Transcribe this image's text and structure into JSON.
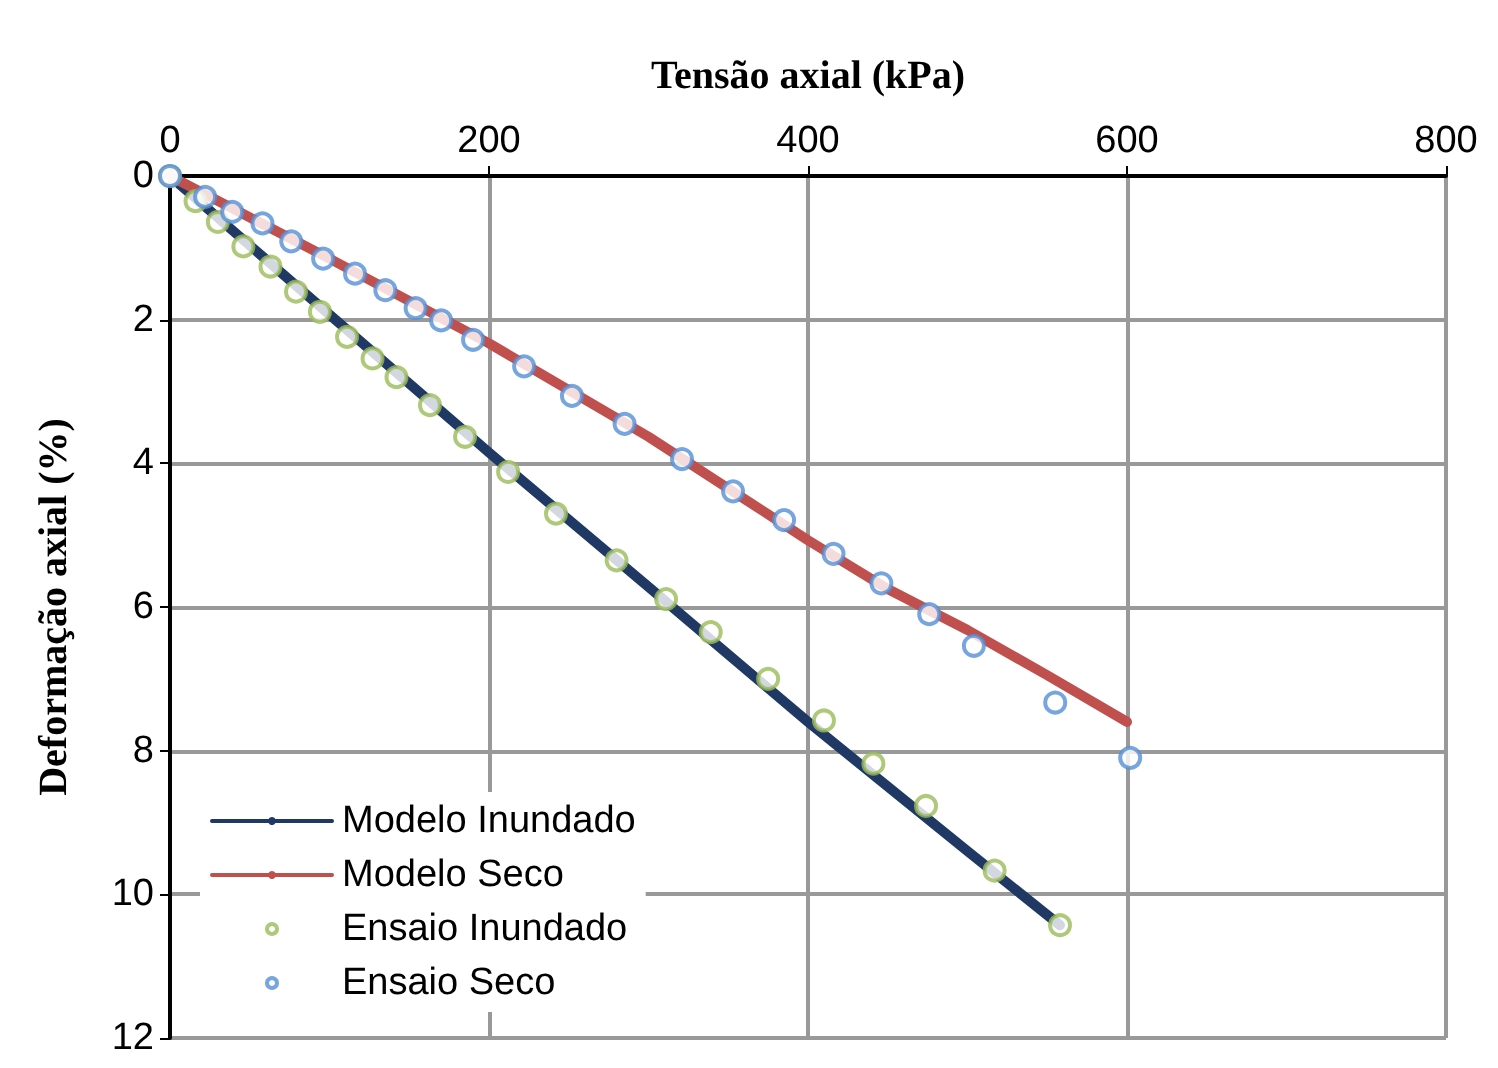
{
  "chart_data": {
    "type": "line",
    "xlabel": "Tensão axial (kPa)",
    "ylabel": "Deformação axial (%)",
    "xlim": [
      0,
      800
    ],
    "xticks": [
      0,
      200,
      400,
      600,
      800
    ],
    "ylim": [
      12,
      0
    ],
    "yticks": [
      0,
      2,
      4,
      6,
      8,
      10,
      12
    ],
    "grid": true,
    "legend": "bottom left",
    "series": [
      {
        "name": "Modelo Inundado",
        "type": "line",
        "color": "#1f3864",
        "marker": "none",
        "line_style": "solid",
        "x": [
          0,
          100,
          200,
          300,
          400,
          500,
          558
        ],
        "values": [
          0,
          1.93,
          3.85,
          5.72,
          7.6,
          9.4,
          10.43
        ]
      },
      {
        "name": "Modelo Seco",
        "type": "line",
        "color": "#c0504d",
        "marker": "none",
        "line_style": "solid",
        "x": [
          0,
          100,
          200,
          300,
          400,
          450,
          500,
          550,
          600
        ],
        "values": [
          0,
          1.15,
          2.33,
          3.63,
          5.07,
          5.75,
          6.32,
          6.95,
          7.6
        ]
      },
      {
        "name": "Ensaio Inundado",
        "type": "scatter",
        "color": "#9bbb59",
        "marker": "circle",
        "x": [
          0,
          16,
          30,
          46,
          63,
          79,
          94,
          111,
          127,
          142,
          163,
          185,
          212,
          242,
          280,
          311,
          339,
          375,
          410,
          441,
          474,
          517,
          558
        ],
        "values": [
          0,
          0.35,
          0.64,
          0.98,
          1.26,
          1.61,
          1.89,
          2.24,
          2.54,
          2.8,
          3.19,
          3.63,
          4.12,
          4.7,
          5.35,
          5.89,
          6.35,
          7.0,
          7.58,
          8.18,
          8.77,
          9.67,
          10.43
        ]
      },
      {
        "name": "Ensaio Seco",
        "type": "scatter",
        "color": "#558ed5",
        "marker": "circle",
        "x": [
          0,
          22,
          39,
          58,
          76,
          96,
          116,
          135,
          154,
          170,
          190,
          222,
          252,
          285,
          321,
          353,
          385,
          416,
          446,
          476,
          504,
          555,
          602
        ],
        "values": [
          0,
          0.29,
          0.5,
          0.66,
          0.91,
          1.15,
          1.36,
          1.59,
          1.84,
          2.01,
          2.28,
          2.65,
          3.06,
          3.45,
          3.94,
          4.39,
          4.79,
          5.26,
          5.67,
          6.1,
          6.54,
          7.33,
          8.1
        ]
      }
    ]
  }
}
